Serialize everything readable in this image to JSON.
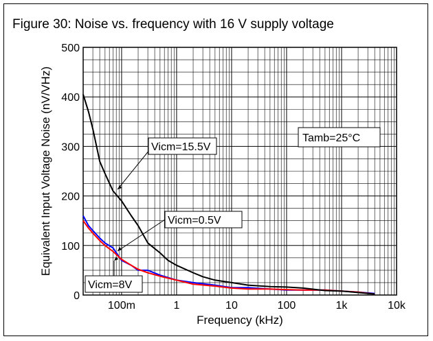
{
  "title": "Figure 30: Noise vs. frequency with 16 V supply voltage",
  "chart_data": {
    "type": "line",
    "title": "Figure 30: Noise vs. frequency with 16 V supply voltage",
    "xlabel": "Frequency (kHz)",
    "ylabel": "Equivalent Input Voltage Noise (nV/VHz)",
    "x_scale": "log",
    "xlim": [
      0.02,
      10000
    ],
    "ylim": [
      0,
      500
    ],
    "x_ticks": [
      {
        "value": 0.1,
        "label": "100m"
      },
      {
        "value": 1,
        "label": "1"
      },
      {
        "value": 10,
        "label": "10"
      },
      {
        "value": 100,
        "label": "100"
      },
      {
        "value": 1000,
        "label": "1k"
      },
      {
        "value": 10000,
        "label": "10k"
      }
    ],
    "y_ticks": [
      0,
      100,
      200,
      300,
      400,
      500
    ],
    "grid": true,
    "annotations": [
      "Tamb=25°C"
    ],
    "colors": {
      "Vicm=15.5V": "#000000",
      "Vicm=0.5V": "#0000ff",
      "Vicm=8V": "#ff0000",
      "grid": "#000000"
    },
    "series": [
      {
        "name": "Vicm=15.5V",
        "x": [
          0.02,
          0.025,
          0.03,
          0.04,
          0.05,
          0.07,
          0.1,
          0.15,
          0.2,
          0.3,
          0.5,
          0.7,
          1,
          2,
          3,
          5,
          10,
          20,
          50,
          100,
          200,
          500,
          1000,
          2000,
          4000
        ],
        "y": [
          405,
          370,
          335,
          270,
          245,
          210,
          190,
          160,
          140,
          105,
          85,
          70,
          60,
          45,
          37,
          30,
          25,
          20,
          17,
          16,
          14,
          9,
          8,
          5,
          2
        ]
      },
      {
        "name": "Vicm=0.5V",
        "x": [
          0.02,
          0.025,
          0.03,
          0.04,
          0.05,
          0.07,
          0.1,
          0.15,
          0.2,
          0.3,
          0.5,
          1,
          2,
          5,
          10,
          20,
          50,
          100,
          200,
          500,
          1000,
          2000,
          4000
        ],
        "y": [
          160,
          140,
          130,
          115,
          105,
          95,
          70,
          60,
          50,
          50,
          40,
          30,
          25,
          20,
          15,
          15,
          12,
          10,
          10,
          10,
          8,
          6,
          3
        ]
      },
      {
        "name": "Vicm=8V",
        "x": [
          0.02,
          0.025,
          0.03,
          0.04,
          0.05,
          0.07,
          0.1,
          0.15,
          0.2,
          0.3,
          0.5,
          1,
          2,
          5,
          10,
          20,
          50,
          100,
          200,
          500,
          1000,
          2000,
          4000
        ],
        "y": [
          150,
          135,
          125,
          110,
          100,
          88,
          72,
          60,
          52,
          45,
          38,
          30,
          22,
          18,
          14,
          12,
          12,
          11,
          10,
          10,
          8,
          6,
          2
        ]
      }
    ]
  }
}
